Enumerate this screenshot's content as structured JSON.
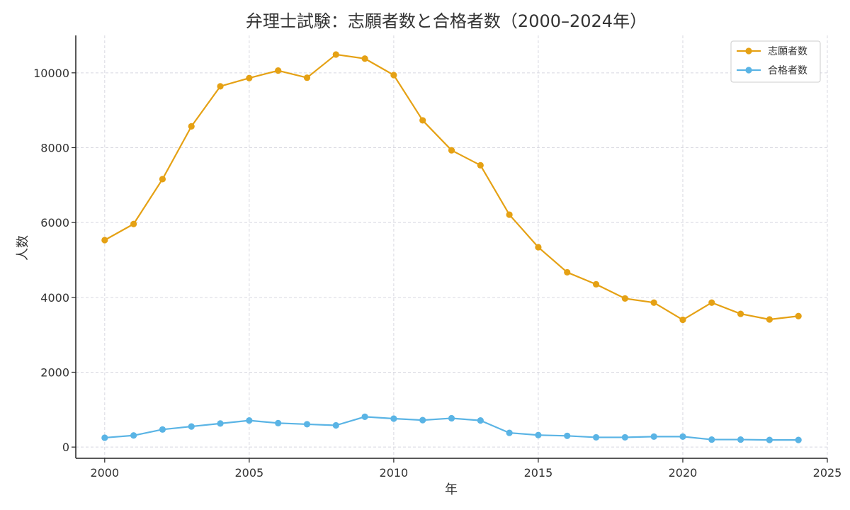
{
  "chart_data": {
    "type": "line",
    "title": "弁理士試験：志願者数と合格者数（2000–2024年）",
    "xlabel": "年",
    "ylabel": "人数",
    "xlim": [
      1999,
      2025
    ],
    "ylim": [
      -300,
      11000
    ],
    "xticks": [
      2000,
      2005,
      2010,
      2015,
      2020,
      2025
    ],
    "yticks": [
      0,
      2000,
      4000,
      6000,
      8000,
      10000
    ],
    "grid": true,
    "legend_position": "top-right",
    "x": [
      2000,
      2001,
      2002,
      2003,
      2004,
      2005,
      2006,
      2007,
      2008,
      2009,
      2010,
      2011,
      2012,
      2013,
      2014,
      2015,
      2016,
      2017,
      2018,
      2019,
      2020,
      2021,
      2022,
      2023,
      2024
    ],
    "series": [
      {
        "name": "志願者数",
        "color": "#e5a114",
        "values": [
          5530,
          5960,
          7160,
          8570,
          9640,
          9860,
          10060,
          9870,
          10490,
          10380,
          9940,
          8730,
          7930,
          7530,
          6210,
          5340,
          4670,
          4350,
          3970,
          3860,
          3400,
          3860,
          3560,
          3410,
          3500
        ]
      },
      {
        "name": "合格者数",
        "color": "#5ab4e5",
        "values": [
          250,
          310,
          470,
          550,
          630,
          710,
          640,
          610,
          580,
          810,
          760,
          720,
          770,
          710,
          380,
          320,
          300,
          260,
          260,
          280,
          280,
          200,
          200,
          190,
          190
        ]
      }
    ]
  }
}
